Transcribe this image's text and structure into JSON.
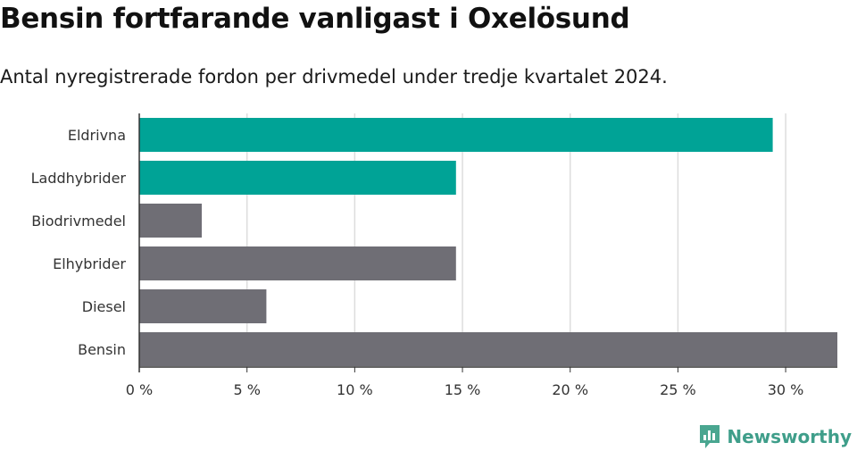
{
  "title": "Bensin fortfarande vanligast i Oxelösund",
  "subtitle": "Antal nyregistrerade fordon per drivmedel under tredje kvartalet 2024.",
  "brand": "Newsworthy",
  "colors": {
    "highlight": "#00a396",
    "default": "#6f6e75",
    "grid": "#dddddd",
    "axis": "#333333"
  },
  "chart_data": {
    "type": "bar",
    "orientation": "horizontal",
    "categories": [
      "Eldrivna",
      "Laddhybrider",
      "Biodrivmedel",
      "Elhybrider",
      "Diesel",
      "Bensin"
    ],
    "values": [
      29.4,
      14.7,
      2.9,
      14.7,
      5.9,
      32.4
    ],
    "highlight": [
      true,
      true,
      false,
      false,
      false,
      false
    ],
    "x_ticks": [
      0,
      5,
      10,
      15,
      20,
      25,
      30
    ],
    "x_tick_labels": [
      "0 %",
      "5 %",
      "10 %",
      "15 %",
      "20 %",
      "25 %",
      "30 %"
    ],
    "xlim": [
      0,
      32.4
    ],
    "grid": true
  }
}
